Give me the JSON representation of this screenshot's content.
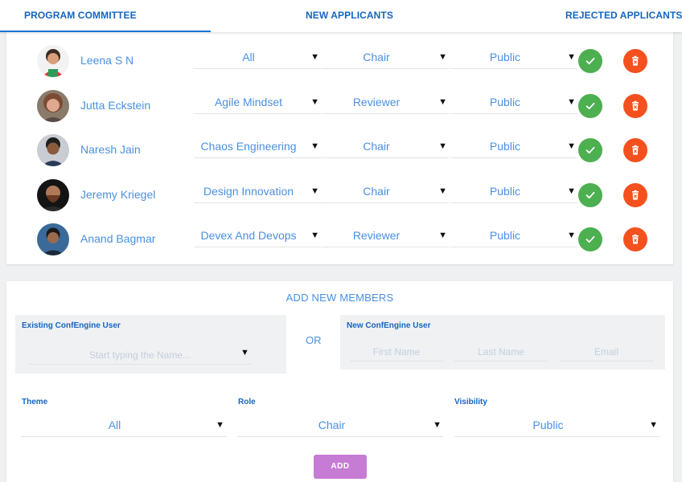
{
  "tabs": [
    {
      "label": "PROGRAM COMMITTEE",
      "active": true
    },
    {
      "label": "NEW APPLICANTS",
      "active": false
    },
    {
      "label": "REJECTED APPLICANTS",
      "active": false
    }
  ],
  "members": [
    {
      "name": "Leena S N",
      "theme": "All",
      "role": "Chair",
      "visibility": "Public"
    },
    {
      "name": "Jutta Eckstein",
      "theme": "Agile Mindset",
      "role": "Reviewer",
      "visibility": "Public"
    },
    {
      "name": "Naresh Jain",
      "theme": "Chaos Engineering",
      "role": "Chair",
      "visibility": "Public"
    },
    {
      "name": "Jeremy Kriegel",
      "theme": "Design Innovation",
      "role": "Chair",
      "visibility": "Public"
    },
    {
      "name": "Anand Bagmar",
      "theme": "Devex And Devops",
      "role": "Reviewer",
      "visibility": "Public"
    }
  ],
  "add_section": {
    "title": "ADD NEW MEMBERS",
    "existing_label": "Existing ConfEngine User",
    "existing_placeholder": "Start typing the Name...",
    "or_text": "OR",
    "new_label": "New ConfEngine User",
    "first_name_placeholder": "First Name",
    "last_name_placeholder": "Last Name",
    "email_placeholder": "Email",
    "theme_label": "Theme",
    "theme_value": "All",
    "role_label": "Role",
    "role_value": "Chair",
    "visibility_label": "Visibility",
    "visibility_value": "Public",
    "add_button": "ADD"
  },
  "caret": "▼",
  "colors": {
    "accent": "#1565c0",
    "link": "#4a90e2",
    "approve": "#4caf50",
    "delete": "#f4511e",
    "add_button": "#c67bd4"
  },
  "icons": {
    "approve": "check-icon",
    "delete": "trash-icon",
    "dropdown": "caret-down-icon"
  }
}
